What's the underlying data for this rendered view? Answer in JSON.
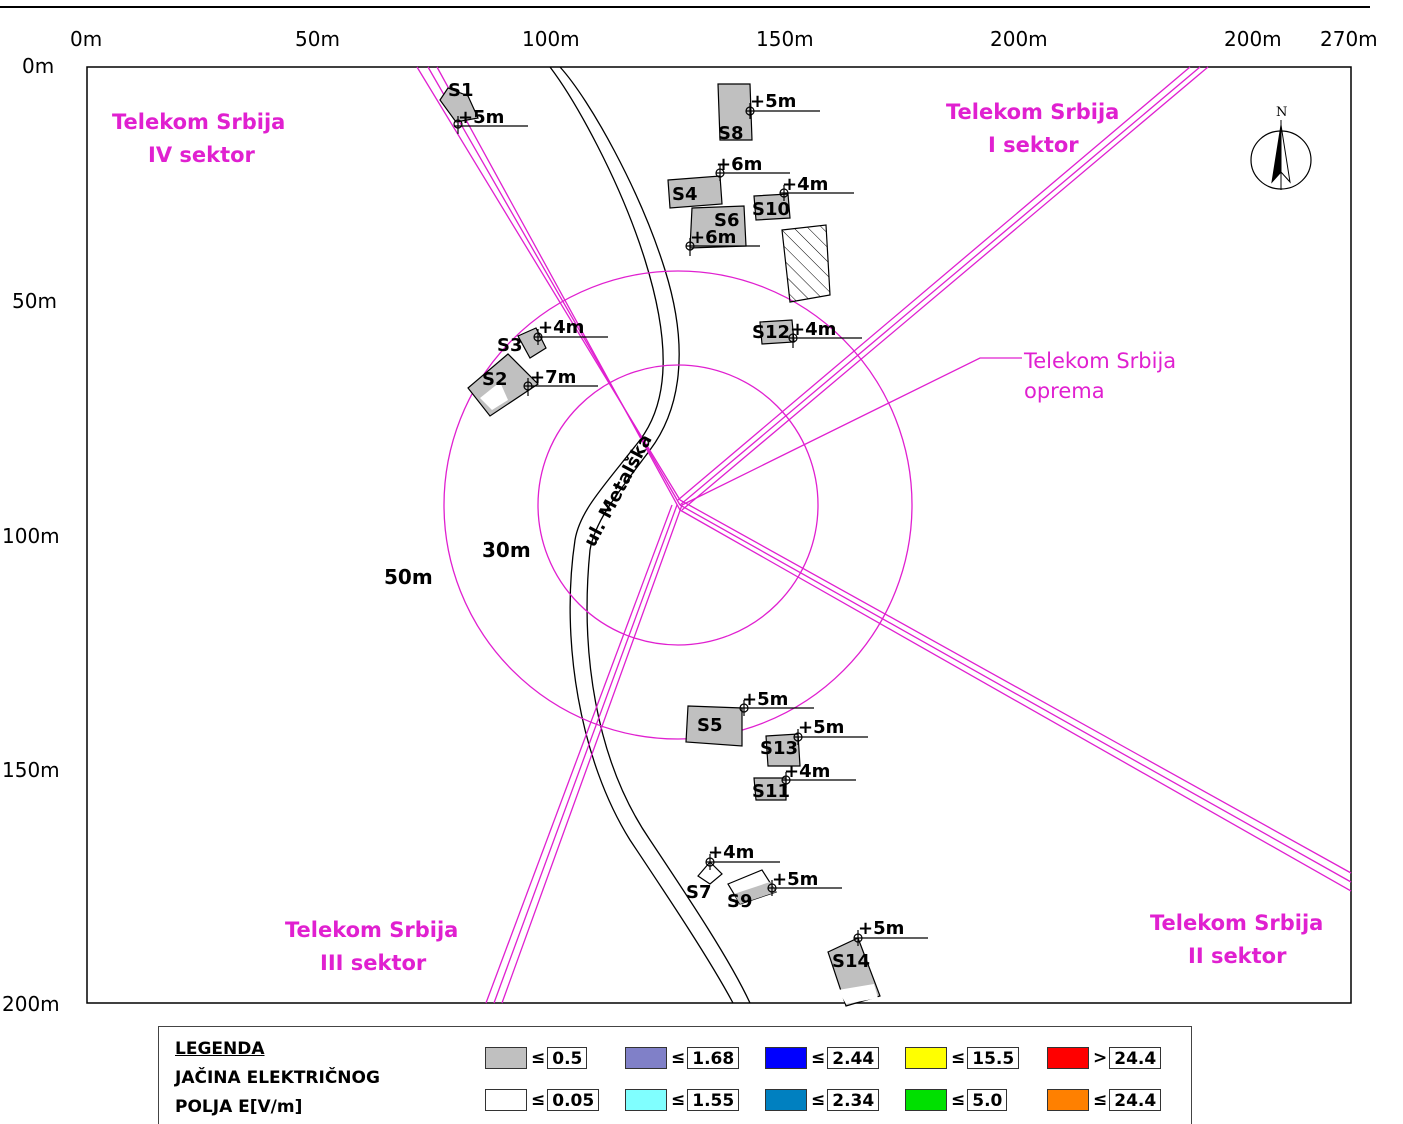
{
  "axes": {
    "x_ticks": [
      "0m",
      "50m",
      "100m",
      "150m",
      "200m",
      "200m",
      "270m"
    ],
    "y_ticks": [
      "0m",
      "50m",
      "100m",
      "150m",
      "200m"
    ]
  },
  "sectors": {
    "iv": {
      "line1": "Telekom Srbija",
      "line2": "IV sektor"
    },
    "i": {
      "line1": "Telekom Srbija",
      "line2": "I sektor"
    },
    "iii": {
      "line1": "Telekom Srbija",
      "line2": "III sektor"
    },
    "ii": {
      "line1": "Telekom Srbija",
      "line2": "II sektor"
    }
  },
  "equipment": {
    "line1": "Telekom Srbija",
    "line2": "oprema"
  },
  "radii": {
    "inner": "30m",
    "outer": "50m"
  },
  "street": "ul. Metalška",
  "north": "N",
  "buildings": [
    {
      "id": "S1",
      "height": "+5m"
    },
    {
      "id": "S2",
      "height": "+7m"
    },
    {
      "id": "S3",
      "height": "+4m"
    },
    {
      "id": "S4",
      "height": "+6m"
    },
    {
      "id": "S5",
      "height": "+5m"
    },
    {
      "id": "S6",
      "height": "+6m"
    },
    {
      "id": "S7",
      "height": "+4m"
    },
    {
      "id": "S8",
      "height": "+5m"
    },
    {
      "id": "S9",
      "height": "+5m"
    },
    {
      "id": "S10",
      "height": "+4m"
    },
    {
      "id": "S11",
      "height": "+4m"
    },
    {
      "id": "S12",
      "height": "+4m"
    },
    {
      "id": "S13",
      "height": "+5m"
    },
    {
      "id": "S14",
      "height": "+5m"
    }
  ],
  "legend": {
    "title1": "LEGENDA",
    "title2": "JAČINA ELEKTRIČNOG",
    "title3": "POLJA E[V/m]",
    "items": [
      {
        "op": "≤",
        "value": "0.5",
        "color": "#c0c0c0"
      },
      {
        "op": "≤",
        "value": "1.68",
        "color": "#8080c8"
      },
      {
        "op": "≤",
        "value": "2.44",
        "color": "#0000ff"
      },
      {
        "op": "≤",
        "value": "15.5",
        "color": "#ffff00"
      },
      {
        "op": ">",
        "value": "24.4",
        "color": "#ff0000"
      },
      {
        "op": "≤",
        "value": "0.05",
        "color": "#ffffff"
      },
      {
        "op": "≤",
        "value": "1.55",
        "color": "#80ffff"
      },
      {
        "op": "≤",
        "value": "2.34",
        "color": "#0080c0"
      },
      {
        "op": "≤",
        "value": "5.0",
        "color": "#00e000"
      },
      {
        "op": "≤",
        "value": "24.4",
        "color": "#ff8000"
      }
    ]
  },
  "colors": {
    "sector_lines": "#e020d0",
    "buildings": "#c0c0c0"
  }
}
